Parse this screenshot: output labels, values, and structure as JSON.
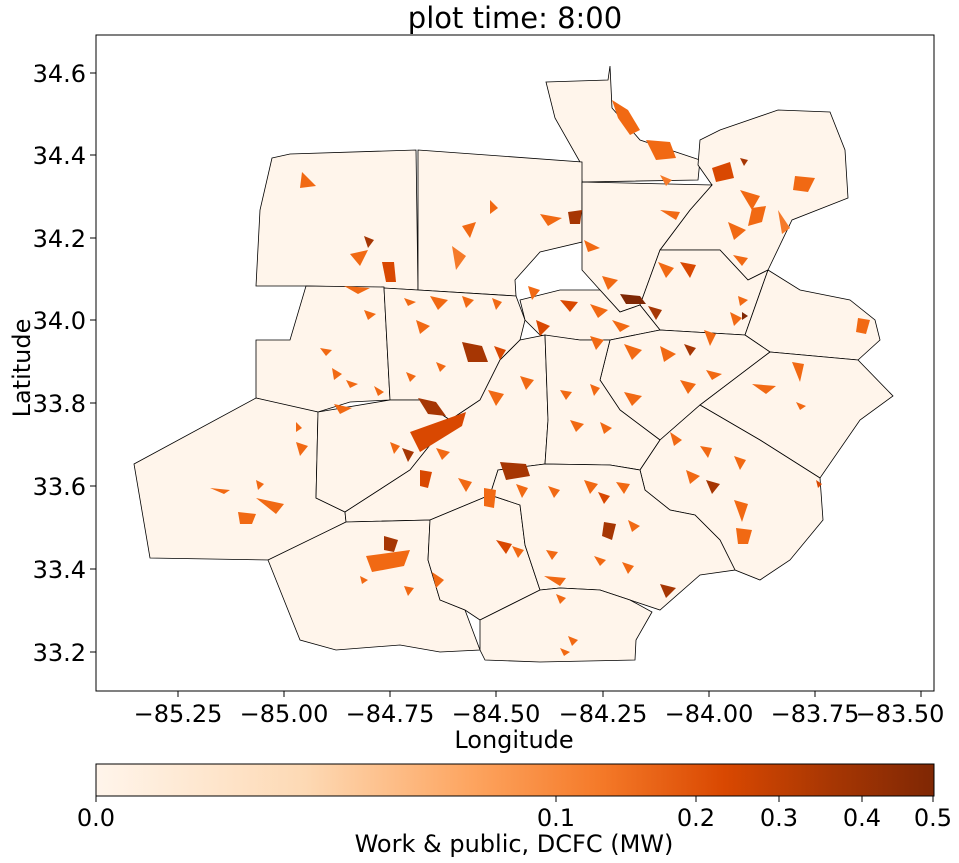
{
  "title": "plot time: 8:00",
  "xlabel": "Longitude",
  "ylabel": "Latitude",
  "x_ticks": [
    "−85.25",
    "−85.00",
    "−84.75",
    "−84.50",
    "−84.25",
    "−84.00",
    "−83.75",
    "−83.50"
  ],
  "y_ticks": [
    "34.6",
    "34.4",
    "34.2",
    "34.0",
    "33.8",
    "33.6",
    "33.4",
    "33.2"
  ],
  "colorbar": {
    "label": "Work & public, DCFC (MW)",
    "ticks": [
      "0.0",
      "0.1",
      "0.2",
      "0.3",
      "0.4",
      "0.5"
    ],
    "colormap": "Oranges",
    "color_low": "#fff5eb",
    "color_mid": "#f16913",
    "color_high": "#7f2704"
  },
  "map": {
    "background_fill": "#fff5eb",
    "boundary_color": "#000000",
    "xlim": [
      -85.42,
      -83.45
    ],
    "ylim": [
      33.1,
      34.69
    ]
  }
}
